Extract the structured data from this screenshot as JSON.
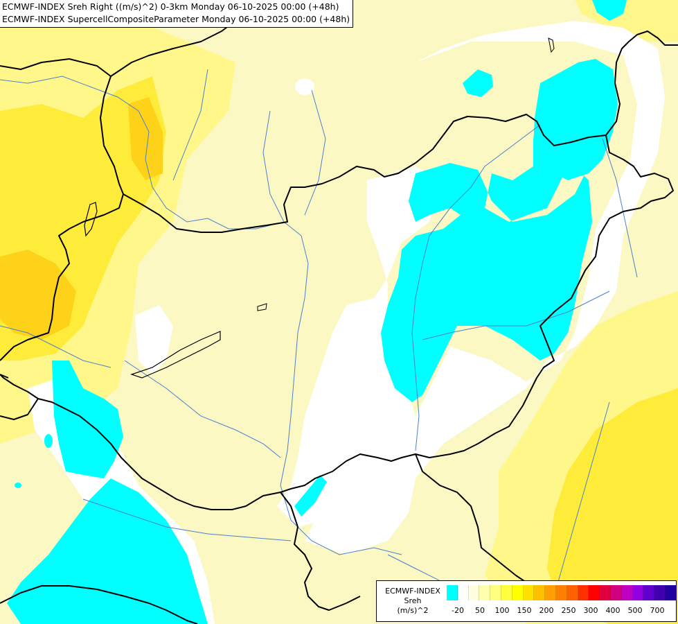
{
  "header": {
    "line1": "ECMWF-INDEX Sreh Right ((m/s)^2) 0-3km Monday 06-10-2025 00:00 (+48h)",
    "line2": "ECMWF-INDEX SupercellCompositeParameter Monday 06-10-2025 00:00 (+48h)"
  },
  "legend": {
    "line1": "ECMWF-INDEX",
    "line2": "Sreh",
    "line3": "(m/s)^2",
    "ticks": [
      "-20",
      "50",
      "100",
      "150",
      "200",
      "250",
      "300",
      "400",
      "500",
      "700"
    ],
    "colors": [
      "#00ffff",
      "#ffffff",
      "#ffffe0",
      "#ffffb0",
      "#ffff80",
      "#ffff40",
      "#ffff00",
      "#ffe000",
      "#ffc000",
      "#ffa000",
      "#ff8000",
      "#ff6000",
      "#ff3000",
      "#ff0000",
      "#e00040",
      "#d00080",
      "#c000c0",
      "#9000e0",
      "#6000d0",
      "#4000b0",
      "#2000a0"
    ]
  },
  "map": {
    "colors": {
      "cyan": "#00ffff",
      "white": "#ffffff",
      "pale_yellow": "#fbf8c4",
      "light_yellow": "#fff78a",
      "yellow": "#ffec3a",
      "deep_yellow": "#ffd21a",
      "border": "#000000",
      "river": "#4a7fd0"
    }
  }
}
